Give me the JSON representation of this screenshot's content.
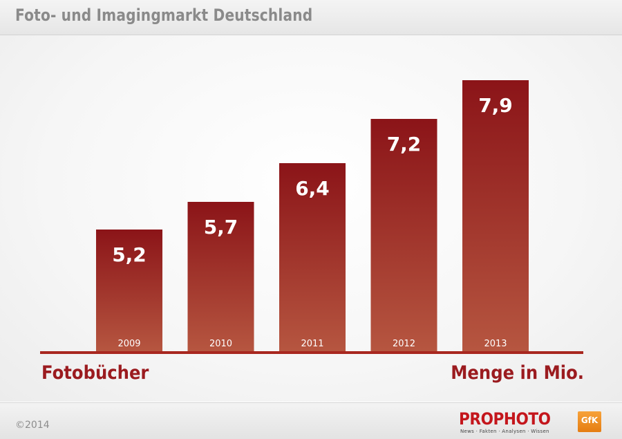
{
  "header": {
    "title": "Foto- und Imagingmarkt Deutschland"
  },
  "chart_data": {
    "type": "bar",
    "title": "Fotobücher",
    "ylabel": "Menge in Mio.",
    "categories": [
      "2009",
      "2010",
      "2011",
      "2012",
      "2013"
    ],
    "values": [
      5.2,
      5.7,
      6.4,
      7.2,
      7.9
    ],
    "value_labels": [
      "5,2",
      "5,7",
      "6,4",
      "7,2",
      "7,9"
    ],
    "ylim": [
      3.0,
      8.3
    ],
    "grid": false,
    "bar_color_top": "#8b1418",
    "bar_color_bottom": "#b65640"
  },
  "footer": {
    "copyright": "©2014",
    "brand": "PROPHOTO",
    "tagline": "News · Fakten · Analysen · Wissen",
    "partner": "GfK"
  },
  "colors": {
    "accent": "#9b1b1f",
    "header_text": "#8a8a8a"
  }
}
